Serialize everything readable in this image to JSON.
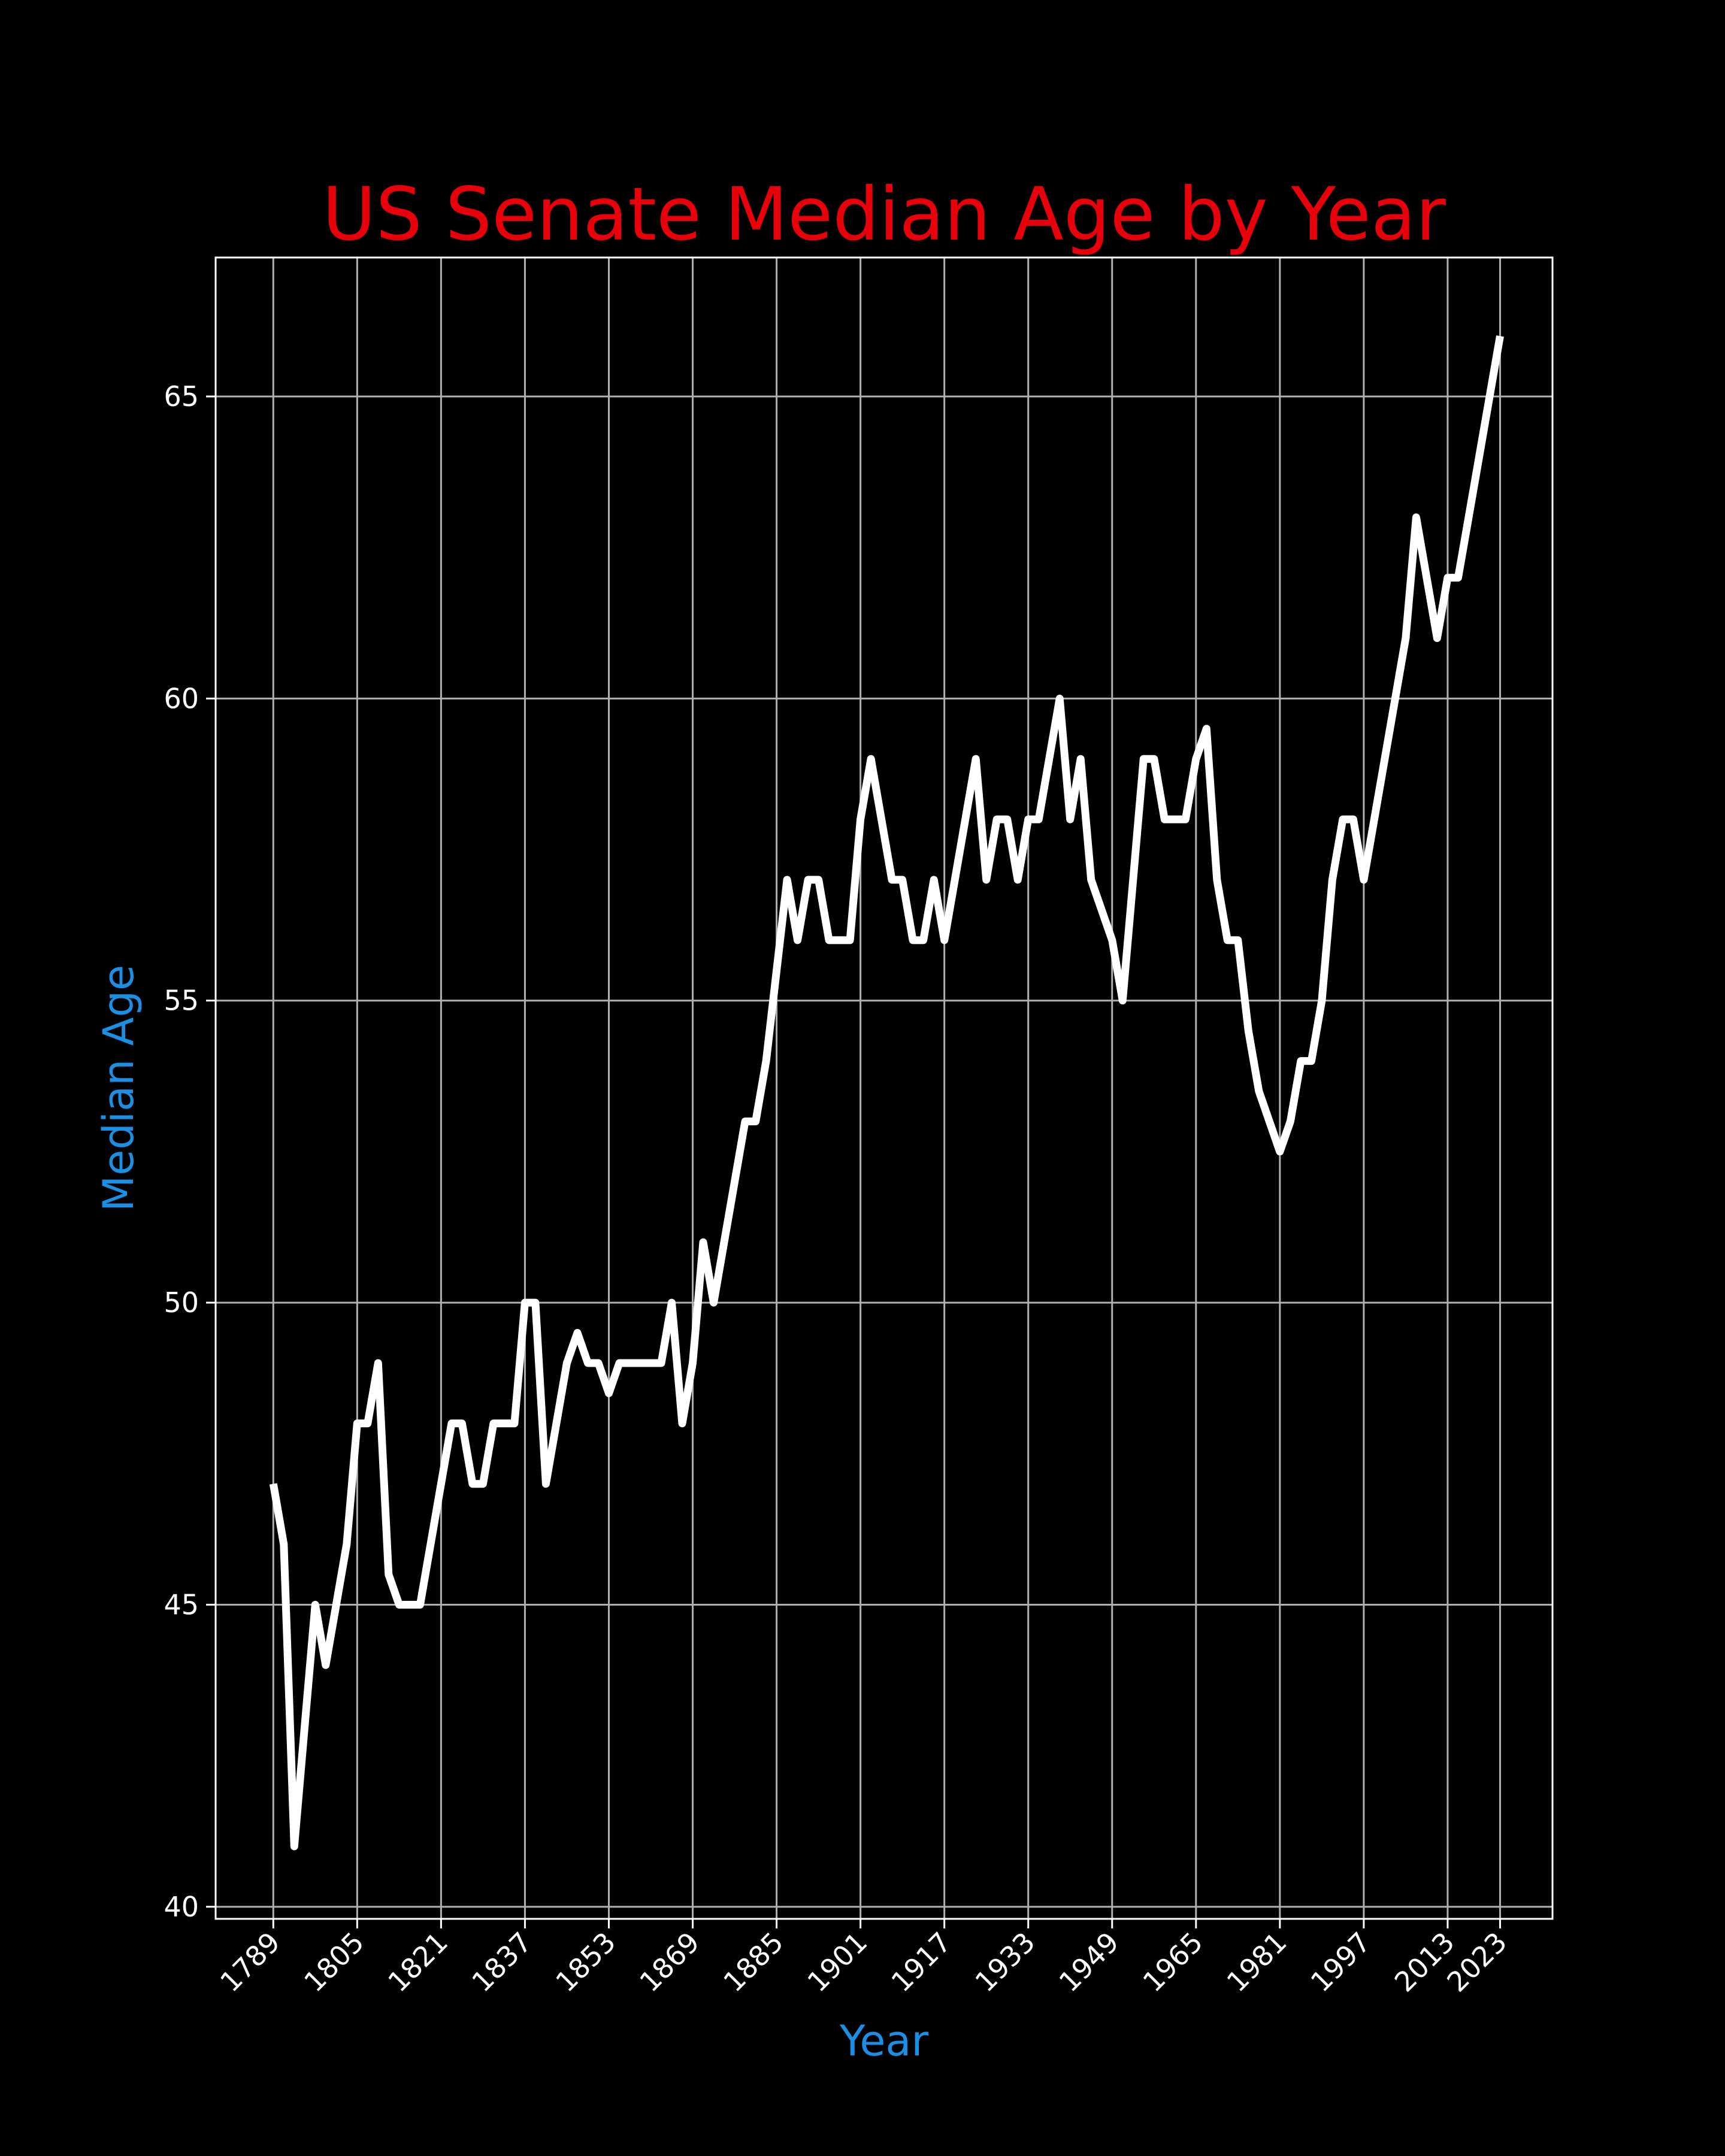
{
  "chart_data": {
    "type": "line",
    "title": "US Senate Median Age by Year",
    "xlabel": "Year",
    "ylabel": "Median Age",
    "xlim": [
      1778,
      2033
    ],
    "ylim": [
      39.8,
      67.3
    ],
    "grid": true,
    "colors": {
      "background": "#000000",
      "line": "#ffffff",
      "title": "#e8000b",
      "axis_label": "#1a8fe3",
      "grid": "#b0b0b0"
    },
    "x_ticks": [
      1789,
      1805,
      1821,
      1837,
      1853,
      1869,
      1885,
      1901,
      1917,
      1933,
      1949,
      1965,
      1981,
      1997,
      2013,
      2023
    ],
    "x_tick_labels": [
      "1789",
      "1805",
      "1821",
      "1837",
      "1853",
      "1869",
      "1885",
      "1901",
      "1917",
      "1933",
      "1949",
      "1965",
      "1981",
      "1997",
      "2013",
      "2023"
    ],
    "y_ticks": [
      40,
      45,
      50,
      55,
      60,
      65
    ],
    "y_tick_labels": [
      "40",
      "45",
      "50",
      "55",
      "60",
      "65"
    ],
    "series": [
      {
        "x": [
          1789,
          1791,
          1793,
          1795,
          1797,
          1799,
          1801,
          1803,
          1805,
          1807,
          1809,
          1811,
          1813,
          1815,
          1817,
          1819,
          1821,
          1823,
          1825,
          1827,
          1829,
          1831,
          1833,
          1835,
          1837,
          1839,
          1841,
          1843,
          1845,
          1847,
          1849,
          1851,
          1853,
          1855,
          1857,
          1859,
          1861,
          1863,
          1865,
          1867,
          1869,
          1871,
          1873,
          1875,
          1877,
          1879,
          1881,
          1883,
          1885,
          1887,
          1889,
          1891,
          1893,
          1895,
          1897,
          1899,
          1901,
          1903,
          1905,
          1907,
          1909,
          1911,
          1913,
          1915,
          1917,
          1919,
          1921,
          1923,
          1925,
          1927,
          1929,
          1931,
          1933,
          1935,
          1937,
          1939,
          1941,
          1943,
          1945,
          1947,
          1949,
          1951,
          1953,
          1955,
          1957,
          1959,
          1961,
          1963,
          1965,
          1967,
          1969,
          1971,
          1973,
          1975,
          1977,
          1979,
          1981,
          1983,
          1985,
          1987,
          1989,
          1991,
          1993,
          1995,
          1997,
          1999,
          2001,
          2003,
          2005,
          2007,
          2009,
          2011,
          2013,
          2015,
          2017,
          2019,
          2021,
          2023
        ],
        "values": [
          47,
          46,
          41,
          43,
          45,
          44,
          45,
          46,
          48,
          48,
          49,
          45.5,
          45,
          45,
          45,
          46,
          47,
          48,
          48,
          47,
          47,
          48,
          48,
          48,
          50,
          50,
          47,
          48,
          49,
          49.5,
          49,
          49,
          48.5,
          49,
          49,
          49,
          49,
          49,
          50,
          48,
          49,
          51,
          50,
          51,
          52,
          53,
          53,
          54,
          55.5,
          57,
          56,
          57,
          57,
          56,
          56,
          56,
          58,
          59,
          58,
          57,
          57,
          56,
          56,
          57,
          56,
          57,
          58,
          59,
          57,
          58,
          58,
          57,
          58,
          58,
          59,
          60,
          58,
          59,
          57,
          56.5,
          56,
          55,
          57,
          59,
          59,
          58,
          58,
          58,
          59,
          59.5,
          57,
          56,
          56,
          54.5,
          53.5,
          53,
          52.5,
          53,
          54,
          54,
          55,
          57,
          58,
          58,
          57,
          58,
          59,
          60,
          61,
          63,
          62,
          61,
          62,
          62,
          63,
          64,
          65,
          66
        ]
      }
    ]
  }
}
